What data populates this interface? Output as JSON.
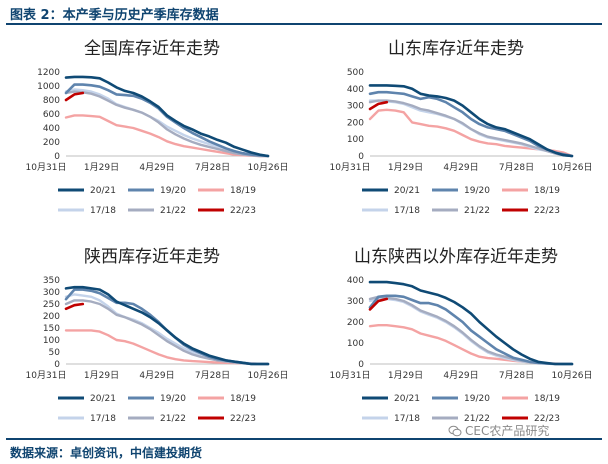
{
  "header": {
    "title": "图表 2：本产季与历史产季库存数据"
  },
  "footer": {
    "source": "数据来源：卓创资讯，中信建投期货"
  },
  "watermark": {
    "text": "CEC农产品研究"
  },
  "series_colors": {
    "20/21": "#0f4a75",
    "19/20": "#5f84ad",
    "18/19": "#f4a3a3",
    "17/18": "#c4d3ea",
    "21/22": "#a5acc0",
    "22/23": "#c00000"
  },
  "chart_data": [
    {
      "type": "line",
      "title": "全国库存近年走势",
      "x_ticks": [
        "10月31日",
        "1月29日",
        "4月29日",
        "7月28日",
        "10月26日"
      ],
      "y_ticks": [
        "0",
        "200",
        "400",
        "600",
        "800",
        "1000",
        "1200"
      ],
      "ylim": [
        0,
        1200
      ],
      "legend": [
        "20/21",
        "19/20",
        "18/19",
        "17/18",
        "21/22",
        "22/23"
      ],
      "series": [
        {
          "name": "20/21",
          "values": [
            1120,
            1130,
            1130,
            1125,
            1110,
            1050,
            980,
            930,
            900,
            850,
            780,
            700,
            580,
            500,
            430,
            380,
            320,
            280,
            230,
            190,
            130,
            90,
            50,
            20,
            0
          ]
        },
        {
          "name": "19/20",
          "values": [
            900,
            1020,
            1020,
            1010,
            990,
            940,
            880,
            870,
            860,
            820,
            760,
            680,
            560,
            480,
            400,
            330,
            270,
            210,
            160,
            110,
            70,
            40,
            20,
            10,
            0
          ]
        },
        {
          "name": "18/19",
          "values": [
            550,
            580,
            580,
            570,
            560,
            500,
            440,
            420,
            400,
            360,
            320,
            270,
            210,
            170,
            140,
            120,
            100,
            80,
            60,
            40,
            20,
            10,
            5,
            0,
            0
          ]
        },
        {
          "name": "17/18",
          "values": [
            920,
            950,
            940,
            920,
            880,
            820,
            740,
            700,
            660,
            620,
            560,
            500,
            420,
            360,
            300,
            250,
            210,
            170,
            130,
            90,
            60,
            40,
            20,
            10,
            0
          ]
        },
        {
          "name": "21/22",
          "values": [
            900,
            920,
            910,
            890,
            850,
            790,
            730,
            690,
            660,
            620,
            560,
            480,
            380,
            310,
            250,
            200,
            160,
            130,
            100,
            70,
            40,
            20,
            10,
            0,
            0
          ]
        },
        {
          "name": "22/23",
          "values": [
            800,
            880,
            900
          ]
        }
      ]
    },
    {
      "type": "line",
      "title": "山东库存近年走势",
      "x_ticks": [
        "10月31日",
        "1月29日",
        "4月29日",
        "7月28日",
        "10月26日"
      ],
      "y_ticks": [
        "0",
        "100",
        "200",
        "300",
        "400",
        "500"
      ],
      "ylim": [
        0,
        500
      ],
      "legend": [
        "20/21",
        "19/20",
        "18/19",
        "17/18",
        "21/22",
        "22/23"
      ],
      "series": [
        {
          "name": "20/21",
          "values": [
            420,
            420,
            420,
            418,
            415,
            400,
            370,
            360,
            355,
            345,
            330,
            300,
            260,
            220,
            190,
            170,
            160,
            140,
            120,
            100,
            70,
            40,
            20,
            5,
            0
          ]
        },
        {
          "name": "19/20",
          "values": [
            370,
            380,
            380,
            375,
            370,
            355,
            340,
            350,
            340,
            320,
            290,
            260,
            220,
            190,
            170,
            160,
            150,
            130,
            110,
            90,
            60,
            40,
            20,
            10,
            0
          ]
        },
        {
          "name": "18/19",
          "values": [
            220,
            270,
            275,
            270,
            260,
            200,
            190,
            180,
            175,
            165,
            150,
            125,
            100,
            85,
            75,
            70,
            60,
            55,
            50,
            45,
            40,
            35,
            30,
            20,
            0
          ]
        },
        {
          "name": "17/18",
          "values": [
            330,
            330,
            325,
            320,
            310,
            290,
            270,
            260,
            250,
            235,
            220,
            190,
            160,
            130,
            110,
            100,
            90,
            80,
            70,
            55,
            40,
            30,
            15,
            5,
            0
          ]
        },
        {
          "name": "21/22",
          "values": [
            320,
            330,
            330,
            325,
            315,
            300,
            280,
            270,
            255,
            240,
            220,
            195,
            160,
            135,
            115,
            105,
            95,
            85,
            75,
            60,
            45,
            30,
            15,
            5,
            0
          ]
        },
        {
          "name": "22/23",
          "values": [
            280,
            310,
            320
          ]
        }
      ]
    },
    {
      "type": "line",
      "title": "陕西库存近年走势",
      "x_ticks": [
        "10月31日",
        "1月29日",
        "4月29日",
        "7月28日",
        "10月26日"
      ],
      "y_ticks": [
        "0",
        "50",
        "100",
        "150",
        "200",
        "250",
        "300",
        "350"
      ],
      "ylim": [
        0,
        350
      ],
      "legend": [
        "20/21",
        "19/20",
        "18/19",
        "17/18",
        "21/22",
        "22/23"
      ],
      "series": [
        {
          "name": "20/21",
          "values": [
            315,
            320,
            320,
            315,
            310,
            290,
            260,
            245,
            230,
            215,
            195,
            170,
            140,
            110,
            85,
            65,
            50,
            35,
            25,
            15,
            10,
            5,
            0,
            0,
            0
          ]
        },
        {
          "name": "19/20",
          "values": [
            270,
            310,
            310,
            305,
            295,
            275,
            255,
            255,
            250,
            230,
            205,
            175,
            140,
            110,
            80,
            60,
            45,
            30,
            20,
            15,
            10,
            5,
            0,
            0,
            0
          ]
        },
        {
          "name": "18/19",
          "values": [
            140,
            140,
            140,
            140,
            135,
            120,
            100,
            95,
            85,
            70,
            55,
            40,
            28,
            20,
            15,
            12,
            10,
            8,
            6,
            5,
            4,
            3,
            2,
            1,
            0
          ]
        },
        {
          "name": "17/18",
          "values": [
            280,
            290,
            285,
            280,
            265,
            240,
            210,
            195,
            185,
            170,
            150,
            130,
            105,
            85,
            65,
            50,
            40,
            30,
            22,
            15,
            10,
            6,
            3,
            1,
            0
          ]
        },
        {
          "name": "21/22",
          "values": [
            250,
            265,
            265,
            260,
            250,
            230,
            205,
            195,
            180,
            165,
            145,
            120,
            95,
            75,
            55,
            40,
            30,
            22,
            15,
            10,
            6,
            3,
            1,
            0,
            0
          ]
        },
        {
          "name": "22/23",
          "values": [
            230,
            245,
            250
          ]
        }
      ]
    },
    {
      "type": "line",
      "title": "山东陕西以外库存近年走势",
      "x_ticks": [
        "10月31日",
        "1月29日",
        "4月29日",
        "7月28日",
        "10月26日"
      ],
      "y_ticks": [
        "0",
        "100",
        "200",
        "300",
        "400"
      ],
      "ylim": [
        0,
        400
      ],
      "legend": [
        "20/21",
        "19/20",
        "18/19",
        "17/18",
        "21/22",
        "22/23"
      ],
      "series": [
        {
          "name": "20/21",
          "values": [
            390,
            390,
            390,
            385,
            380,
            370,
            350,
            340,
            330,
            315,
            295,
            270,
            240,
            200,
            165,
            130,
            100,
            70,
            45,
            25,
            10,
            5,
            0,
            0,
            0
          ]
        },
        {
          "name": "19/20",
          "values": [
            270,
            320,
            325,
            325,
            320,
            305,
            290,
            290,
            280,
            260,
            230,
            200,
            160,
            130,
            100,
            70,
            50,
            30,
            20,
            10,
            5,
            2,
            0,
            0,
            0
          ]
        },
        {
          "name": "18/19",
          "values": [
            180,
            185,
            185,
            180,
            175,
            165,
            145,
            135,
            125,
            110,
            90,
            70,
            50,
            35,
            28,
            25,
            20,
            15,
            12,
            8,
            5,
            3,
            2,
            1,
            0
          ]
        },
        {
          "name": "17/18",
          "values": [
            300,
            310,
            310,
            305,
            295,
            275,
            250,
            235,
            220,
            200,
            175,
            145,
            110,
            80,
            55,
            40,
            28,
            20,
            12,
            8,
            5,
            3,
            1,
            0,
            0
          ]
        },
        {
          "name": "21/22",
          "values": [
            310,
            320,
            315,
            310,
            300,
            280,
            255,
            240,
            225,
            205,
            180,
            150,
            115,
            85,
            60,
            45,
            35,
            25,
            15,
            10,
            5,
            3,
            1,
            0,
            0
          ]
        },
        {
          "name": "22/23",
          "values": [
            260,
            300,
            310
          ]
        }
      ]
    }
  ]
}
